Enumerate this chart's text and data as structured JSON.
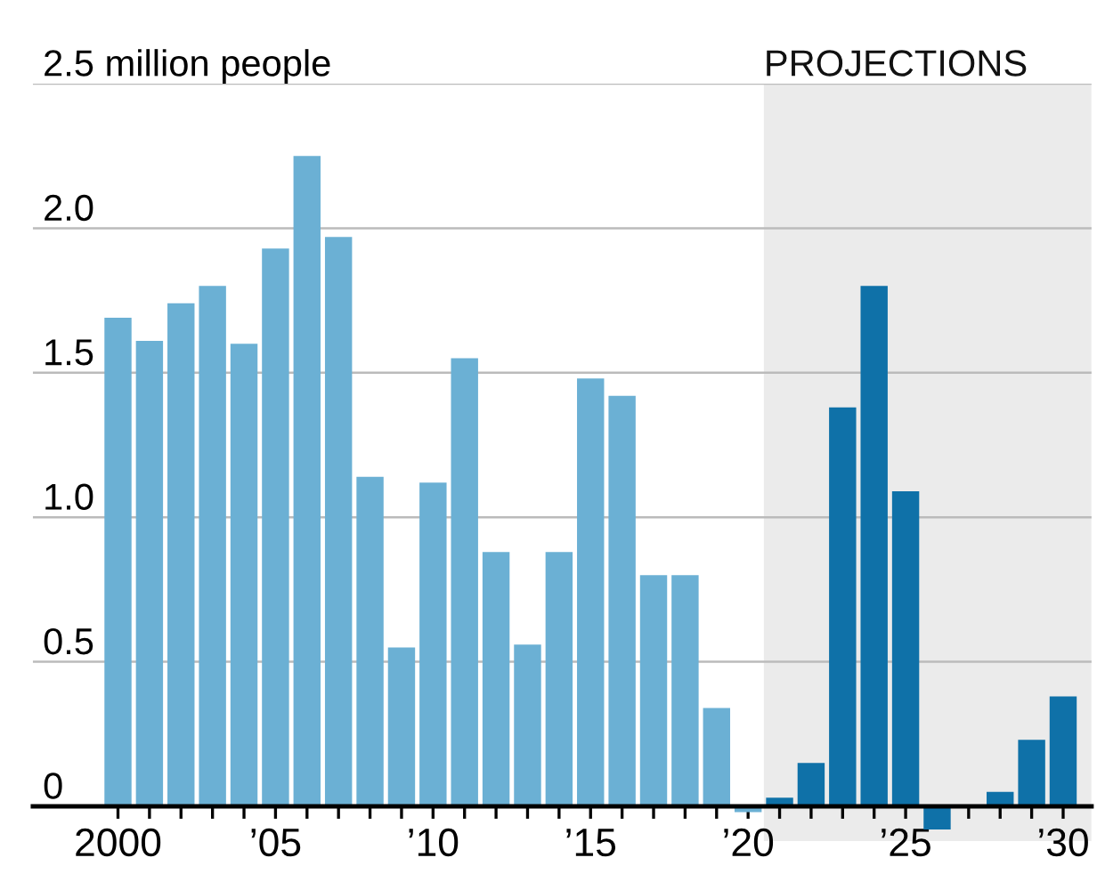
{
  "chart_data": {
    "type": "bar",
    "x": [
      2000,
      2001,
      2002,
      2003,
      2004,
      2005,
      2006,
      2007,
      2008,
      2009,
      2010,
      2011,
      2012,
      2013,
      2014,
      2015,
      2016,
      2017,
      2018,
      2019,
      2020,
      2021,
      2022,
      2023,
      2024,
      2025,
      2026,
      2027,
      2028,
      2029,
      2030
    ],
    "values": [
      1.69,
      1.61,
      1.74,
      1.8,
      1.6,
      1.93,
      2.25,
      1.97,
      1.14,
      0.55,
      1.12,
      1.55,
      0.88,
      0.56,
      0.88,
      1.48,
      1.42,
      0.8,
      0.8,
      0.34,
      -0.02,
      0.03,
      0.15,
      1.38,
      1.8,
      1.09,
      -0.08,
      0.0,
      0.05,
      0.23,
      0.38
    ],
    "colors": [
      "#6bb0d4",
      "#6bb0d4",
      "#6bb0d4",
      "#6bb0d4",
      "#6bb0d4",
      "#6bb0d4",
      "#6bb0d4",
      "#6bb0d4",
      "#6bb0d4",
      "#6bb0d4",
      "#6bb0d4",
      "#6bb0d4",
      "#6bb0d4",
      "#6bb0d4",
      "#6bb0d4",
      "#6bb0d4",
      "#6bb0d4",
      "#6bb0d4",
      "#6bb0d4",
      "#6bb0d4",
      "#6bb0d4",
      "#0f71a8",
      "#0f71a8",
      "#0f71a8",
      "#0f71a8",
      "#0f71a8",
      "#0f71a8",
      "#0f71a8",
      "#0f71a8",
      "#0f71a8",
      "#0f71a8"
    ],
    "xlim": [
      1997.3,
      2030.9
    ],
    "xticks": [
      2000,
      {
        "value": 2001,
        "label": null
      },
      {
        "value": 2002,
        "label": null
      },
      {
        "value": 2003,
        "label": null
      },
      {
        "value": 2004,
        "label": null
      },
      {
        "value": 2005,
        "label": "’05"
      },
      {
        "value": 2006,
        "label": null
      },
      {
        "value": 2007,
        "label": null
      },
      {
        "value": 2008,
        "label": null
      },
      {
        "value": 2009,
        "label": null
      },
      {
        "value": 2010,
        "label": "’10"
      },
      {
        "value": 2011,
        "label": null
      },
      {
        "value": 2012,
        "label": null
      },
      {
        "value": 2013,
        "label": null
      },
      {
        "value": 2014,
        "label": null
      },
      {
        "value": 2015,
        "label": "’15"
      },
      {
        "value": 2016,
        "label": null
      },
      {
        "value": 2017,
        "label": null
      },
      {
        "value": 2018,
        "label": null
      },
      {
        "value": 2019,
        "label": null
      },
      {
        "value": 2020,
        "label": "’20"
      },
      {
        "value": 2021,
        "label": null
      },
      {
        "value": 2022,
        "label": null
      },
      {
        "value": 2023,
        "label": null
      },
      {
        "value": 2024,
        "label": null
      },
      {
        "value": 2025,
        "label": "’25"
      },
      {
        "value": 2026,
        "label": null
      },
      {
        "value": 2027,
        "label": null
      },
      {
        "value": 2028,
        "label": null
      },
      {
        "value": 2029,
        "label": null
      },
      {
        "value": 2030,
        "label": "’30"
      }
    ],
    "ylim": [
      -0.12,
      2.5
    ],
    "yticks": [
      0,
      0.5,
      {
        "value": 1.0,
        "label": "1.0"
      },
      1.5,
      {
        "value": 2.0,
        "label": "2.0"
      },
      {
        "value": 2.5,
        "label": "2.5 million people"
      }
    ],
    "bands": [
      {
        "axis": "x",
        "from": 2020.5,
        "to": 2030.9,
        "label": "PROJECTIONS",
        "color": "#ebebeb"
      }
    ],
    "grid": "y"
  }
}
